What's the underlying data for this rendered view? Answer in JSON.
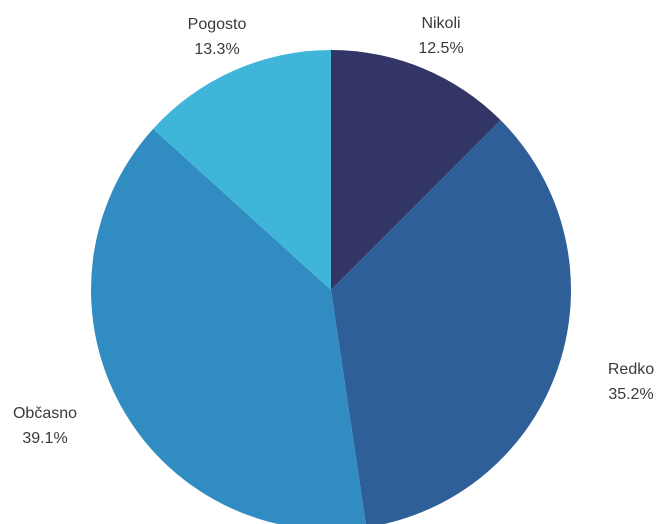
{
  "chart_data": {
    "type": "pie",
    "start_angle": "12 o'clock",
    "direction": "clockwise",
    "slices": [
      {
        "label": "Nikoli",
        "value": 12.5,
        "value_label": "12.5%",
        "color": "#323566"
      },
      {
        "label": "Redko",
        "value": 35.2,
        "value_label": "35.2%",
        "color": "#2e5f98"
      },
      {
        "label": "Občasno",
        "value": 39.1,
        "value_label": "39.1%",
        "color": "#318dc1"
      },
      {
        "label": "Pogosto",
        "value": 13.3,
        "value_label": "13.3%",
        "color": "#3fb6d9"
      }
    ]
  }
}
